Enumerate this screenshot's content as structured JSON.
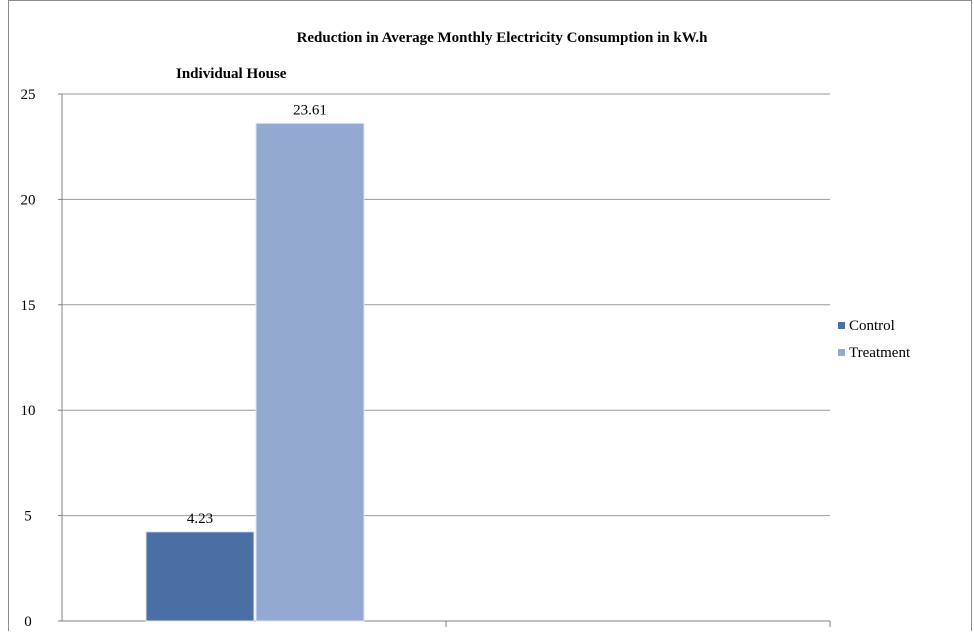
{
  "chart_data": {
    "type": "bar",
    "title": "Reduction in Average Monthly Electricity Consumption in kW.h",
    "subtitle": "Individual House",
    "categories": [
      ""
    ],
    "series": [
      {
        "name": "Control",
        "values": [
          4.23
        ],
        "color": "#4a6fa5"
      },
      {
        "name": "Treatment",
        "values": [
          23.61
        ],
        "color": "#94a9d1"
      }
    ],
    "data_labels": [
      "4.23",
      "23.61"
    ],
    "ylim": [
      0,
      25
    ],
    "yticks": [
      0,
      5,
      10,
      15,
      20,
      25
    ],
    "grid": true,
    "legend_position": "right"
  }
}
